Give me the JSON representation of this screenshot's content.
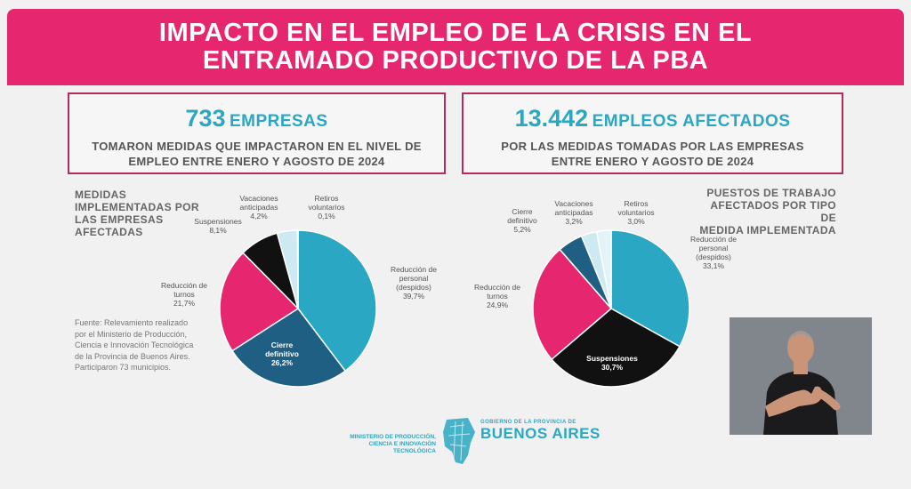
{
  "header": {
    "line1": "IMPACTO EN EL EMPLEO DE LA CRISIS EN EL",
    "line2": "ENTRAMADO PRODUCTIVO DE LA PBA"
  },
  "left_box": {
    "number": "733",
    "unit": "EMPRESAS",
    "line1": "TOMARON MEDIDAS QUE IMPACTARON EN EL NIVEL DE",
    "line2": "EMPLEO ENTRE ENERO Y AGOSTO DE 2024"
  },
  "right_box": {
    "number": "13.442",
    "unit": "EMPLEOS AFECTADOS",
    "line1": "POR LAS MEDIDAS TOMADAS POR LAS EMPRESAS",
    "line2": "ENTRE ENERO Y AGOSTO DE 2024"
  },
  "left_heading": [
    "MEDIDAS",
    "IMPLEMENTADAS POR",
    "LAS EMPRESAS",
    "AFECTADAS"
  ],
  "right_heading": [
    "PUESTOS DE TRABAJO",
    "AFECTADOS POR TIPO DE",
    "MEDIDA IMPLEMENTADA"
  ],
  "source": "Fuente: Relevamiento realizado por el Ministerio de Producción, Ciencia e Innovación Tecnológica de la Provincia de Buenos Aires. Participaron 73 municipios.",
  "logos": {
    "ministry_line1": "MINISTERIO DE PRODUCCIÓN,",
    "ministry_line2": "CIENCIA E INNOVACIÓN TECNOLÓGICA",
    "gov": "GOBIERNO DE LA PROVINCIA DE",
    "ba": "BUENOS AIRES"
  },
  "colors": {
    "pink": "#e6266f",
    "cyan": "#2aa7c2",
    "navy": "#1f5f83",
    "black": "#111111",
    "light": "#cde9f1",
    "white": "#ffffff"
  },
  "chart_data": [
    {
      "type": "pie",
      "title": "MEDIDAS IMPLEMENTADAS POR LAS EMPRESAS AFECTADAS",
      "slices": [
        {
          "label": "Reducción de personal (despidos)",
          "label_lines": [
            "Reducción de",
            "personal",
            "(despidos)"
          ],
          "value": 39.7,
          "pct": "39,7%",
          "color": "#2aa7c2"
        },
        {
          "label": "Cierre definitivo",
          "label_lines": [
            "Cierre",
            "definitivo"
          ],
          "value": 26.2,
          "pct": "26,2%",
          "color": "#1f5f83"
        },
        {
          "label": "Reducción de turnos",
          "label_lines": [
            "Reducción de",
            "turnos"
          ],
          "value": 21.7,
          "pct": "21,7%",
          "color": "#e6266f"
        },
        {
          "label": "Suspensiones",
          "label_lines": [
            "Suspensiones"
          ],
          "value": 8.1,
          "pct": "8,1%",
          "color": "#111111"
        },
        {
          "label": "Vacaciones anticipadas",
          "label_lines": [
            "Vacaciones",
            "anticipadas"
          ],
          "value": 4.2,
          "pct": "4,2%",
          "color": "#cde9f1"
        },
        {
          "label": "Retiros voluntarios",
          "label_lines": [
            "Retiros",
            "voluntarios"
          ],
          "value": 0.1,
          "pct": "0,1%",
          "color": "#ffffff"
        }
      ]
    },
    {
      "type": "pie",
      "title": "PUESTOS DE TRABAJO AFECTADOS POR TIPO DE MEDIDA IMPLEMENTADA",
      "slices": [
        {
          "label": "Reducción de personal (despidos)",
          "label_lines": [
            "Reducción de",
            "personal",
            "(despidos)"
          ],
          "value": 33.1,
          "pct": "33,1%",
          "color": "#2aa7c2"
        },
        {
          "label": "Suspensiones",
          "label_lines": [
            "Suspensiones"
          ],
          "value": 30.7,
          "pct": "30,7%",
          "color": "#111111"
        },
        {
          "label": "Reducción de turnos",
          "label_lines": [
            "Reducción de",
            "turnos"
          ],
          "value": 24.9,
          "pct": "24,9%",
          "color": "#e6266f"
        },
        {
          "label": "Cierre definitivo",
          "label_lines": [
            "Cierre",
            "definitivo"
          ],
          "value": 5.2,
          "pct": "5,2%",
          "color": "#1f5f83"
        },
        {
          "label": "Vacaciones anticipadas",
          "label_lines": [
            "Vacaciones",
            "anticipadas"
          ],
          "value": 3.2,
          "pct": "3,2%",
          "color": "#cde9f1"
        },
        {
          "label": "Retiros voluntarios",
          "label_lines": [
            "Retiros",
            "voluntarios"
          ],
          "value": 3.0,
          "pct": "3,0%",
          "color": "#e3f3f8"
        }
      ]
    }
  ]
}
